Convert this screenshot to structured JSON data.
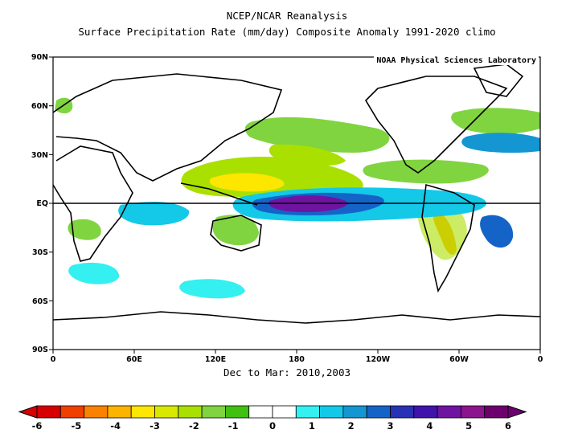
{
  "header": {
    "line1": "NCEP/NCAR Reanalysis",
    "line2": "Surface Precipitation Rate (mm/day) Composite Anomaly 1991-2020 climo",
    "credit": "NOAA Physical Sciences Laboratory"
  },
  "map": {
    "subtitle": "Dec to Mar: 2010,2003",
    "lat_ticks": [
      "90N",
      "60N",
      "30N",
      "EQ",
      "30S",
      "60S",
      "90S"
    ],
    "lon_ticks": [
      "0",
      "60E",
      "120E",
      "180",
      "120W",
      "60W",
      "0"
    ],
    "equator_line": true,
    "anomaly_regions": [
      {
        "region": "Central equatorial Pacific",
        "anomaly_mm_day": 5.5
      },
      {
        "region": "Eastern equatorial Pacific",
        "anomaly_mm_day": 1.5
      },
      {
        "region": "Western Pacific / Maritime Continent",
        "anomaly_mm_day": -2.0
      },
      {
        "region": "North Pacific subtropics",
        "anomaly_mm_day": -1.0
      },
      {
        "region": "Northern South America",
        "anomaly_mm_day": -2.5
      },
      {
        "region": "Southern Brazil / South Atlantic",
        "anomaly_mm_day": 3.0
      },
      {
        "region": "Western Indian Ocean",
        "anomaly_mm_day": 1.0
      },
      {
        "region": "North Atlantic",
        "anomaly_mm_day": 1.5
      }
    ]
  },
  "colorbar": {
    "labels": [
      "-6",
      "-5",
      "-4",
      "-3",
      "-2",
      "-1",
      "0",
      "1",
      "2",
      "3",
      "4",
      "5",
      "6"
    ],
    "colors": [
      "#d60000",
      "#f04000",
      "#fa8200",
      "#fcb400",
      "#fde600",
      "#d8e800",
      "#aae000",
      "#80d440",
      "#40c010",
      "#ffffff",
      "#ffffff",
      "#34f0f0",
      "#14c8e8",
      "#1496d2",
      "#1464c8",
      "#2832b4",
      "#4014aa",
      "#6e14a0",
      "#8c148c",
      "#6e006e"
    ]
  }
}
